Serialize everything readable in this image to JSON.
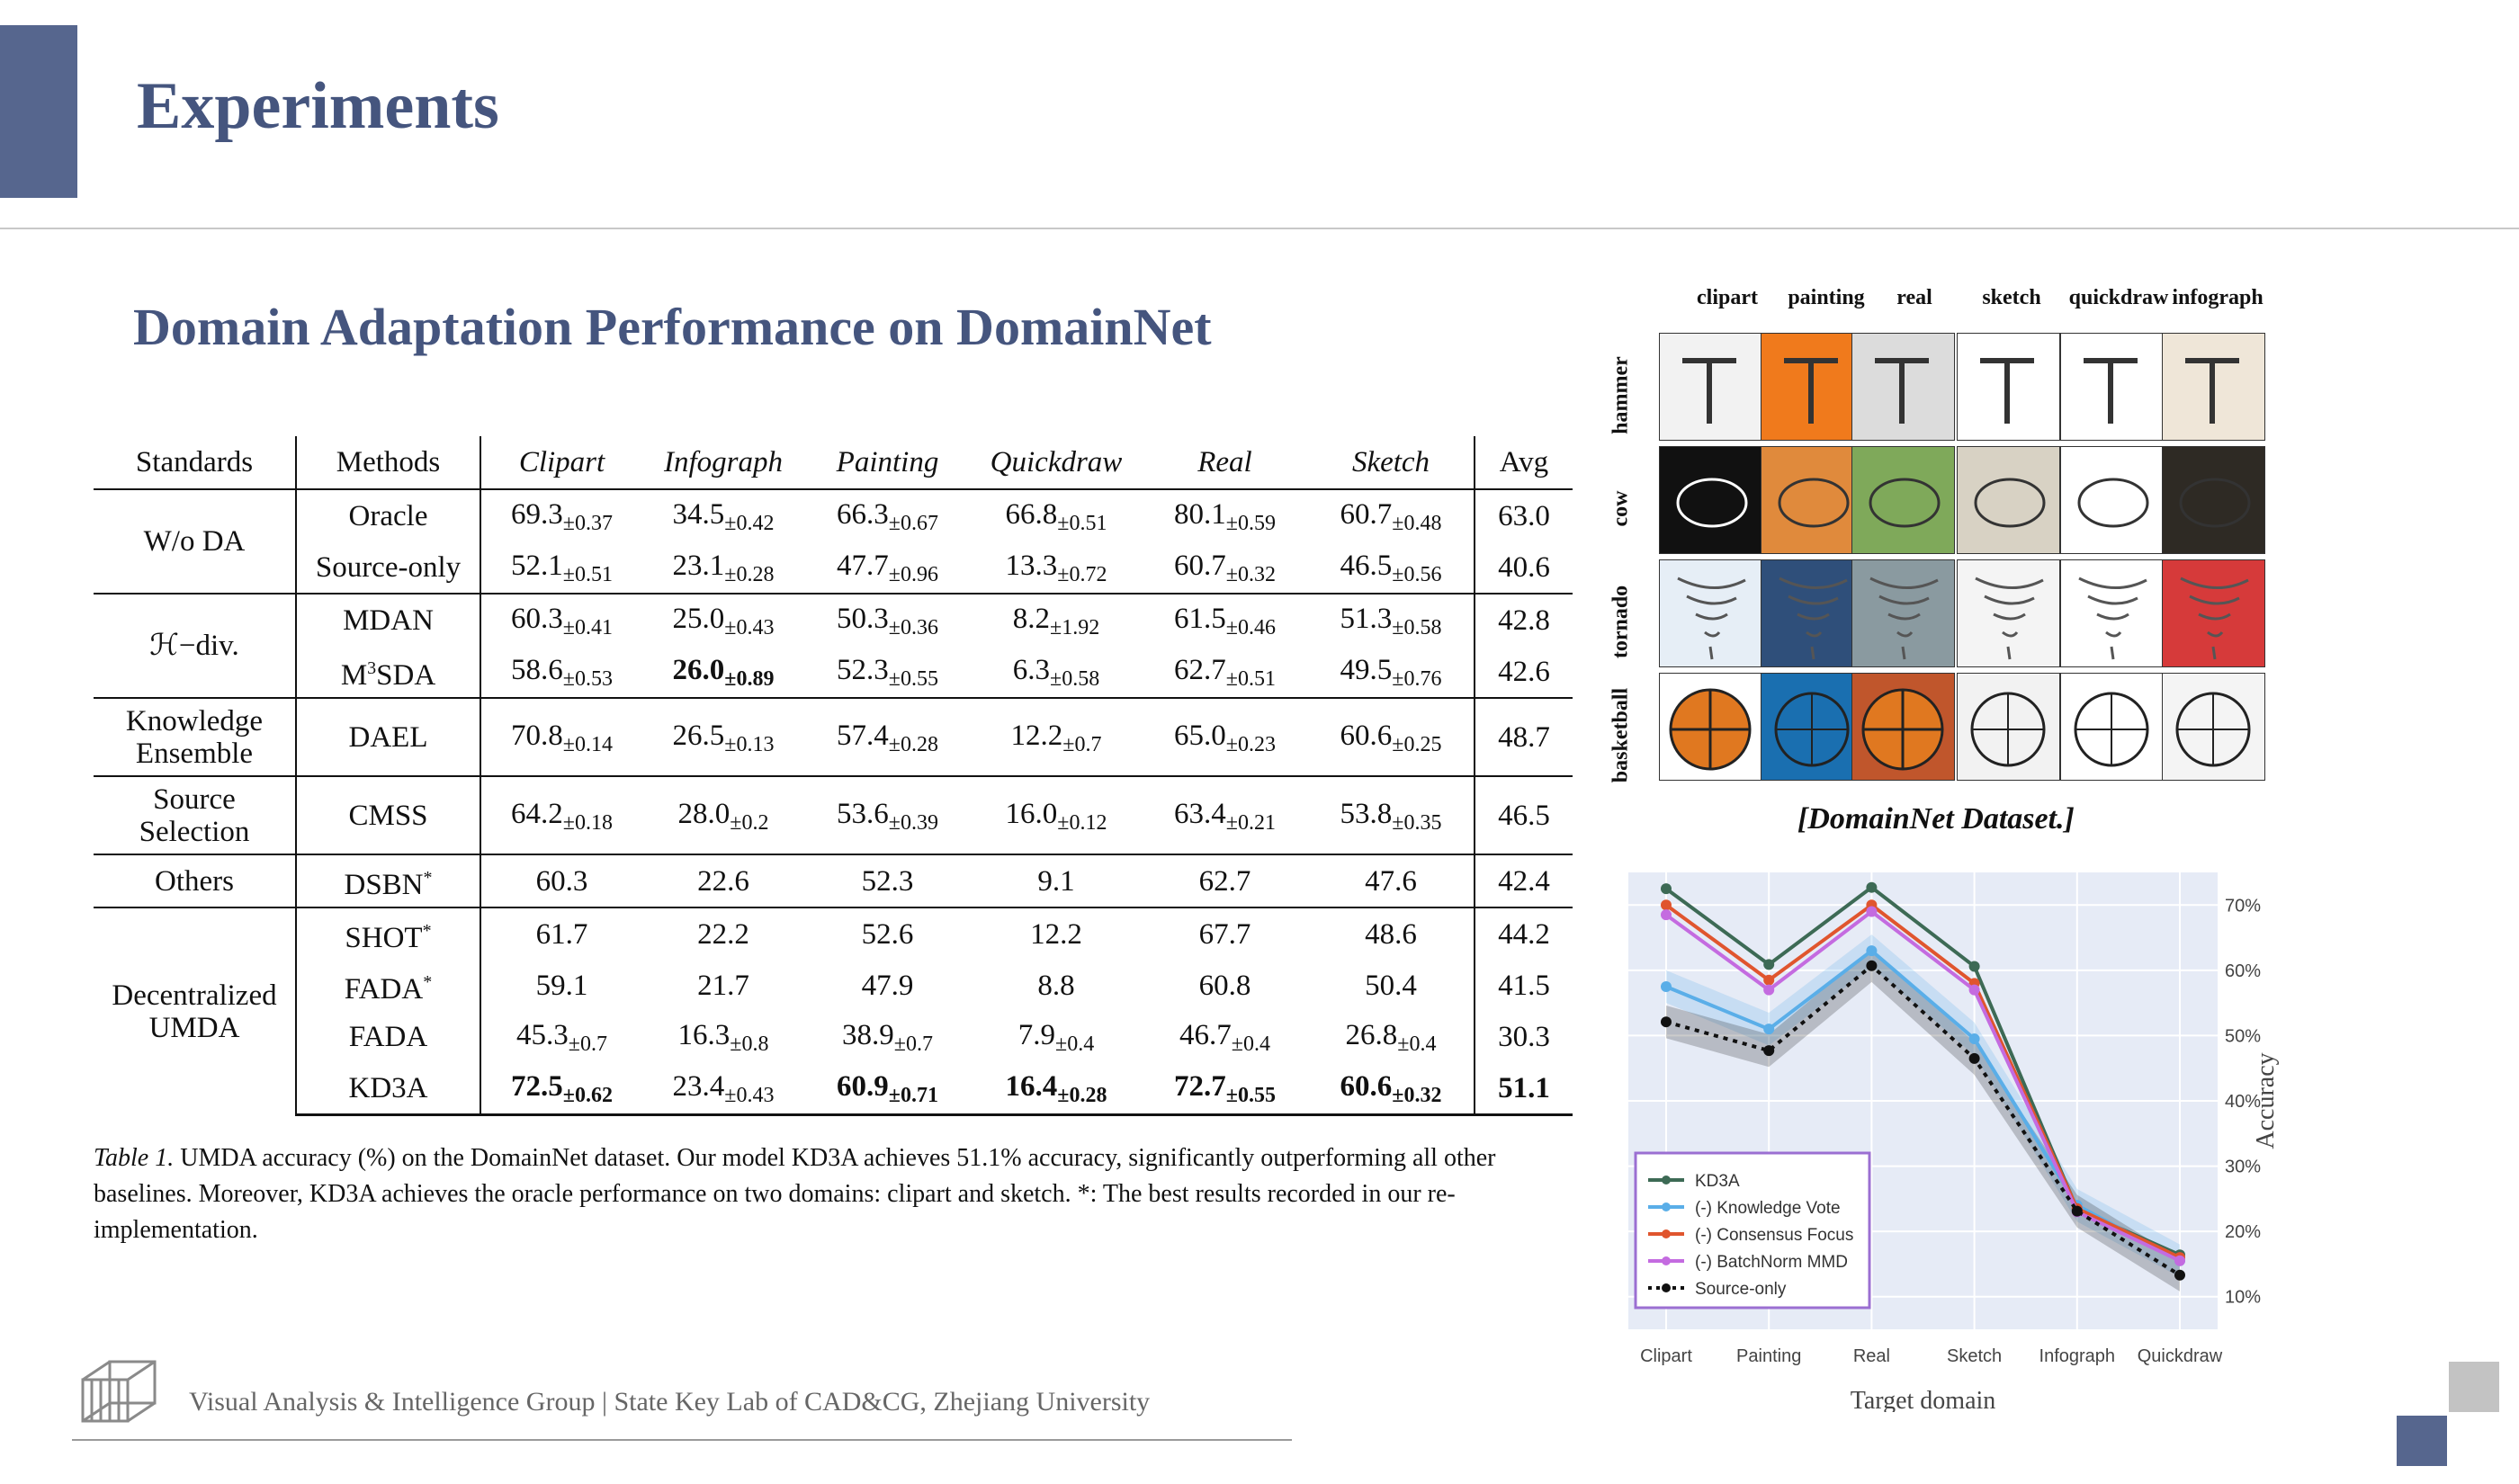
{
  "slide": {
    "title": "Experiments",
    "section_title": "Domain Adaptation Performance on DomainNet",
    "footer": "Visual Analysis & Intelligence Group | State Key Lab of CAD&CG, Zhejiang University"
  },
  "table": {
    "headers": [
      "Standards",
      "Methods",
      "Clipart",
      "Infograph",
      "Painting",
      "Quickdraw",
      "Real",
      "Sketch",
      "Avg"
    ],
    "groups": {
      "wo_da": "W/o DA",
      "h_div": "ℋ−div.",
      "ke_line1": "Knowledge",
      "ke_line2": "Ensemble",
      "ss_line1": "Source",
      "ss_line2": "Selection",
      "others": "Others",
      "dumda_line1": "Decentralized",
      "dumda_line2": "UMDA"
    },
    "methods": {
      "oracle": "Oracle",
      "source_only": "Source-only",
      "mdan": "MDAN",
      "m3sda_a": "M",
      "m3sda_sup": "3",
      "m3sda_b": "SDA",
      "dael": "DAEL",
      "cmss": "CMSS",
      "dsbn": "DSBN",
      "shot": "SHOT",
      "fada_star": "FADA",
      "fada": "FADA",
      "kd3a": "KD3A",
      "star": "*"
    },
    "rows": {
      "oracle": [
        [
          "69.3",
          "±0.37"
        ],
        [
          "34.5",
          "±0.42"
        ],
        [
          "66.3",
          "±0.67"
        ],
        [
          "66.8",
          "±0.51"
        ],
        [
          "80.1",
          "±0.59"
        ],
        [
          "60.7",
          "±0.48"
        ],
        [
          "63.0",
          ""
        ]
      ],
      "source_only": [
        [
          "52.1",
          "±0.51"
        ],
        [
          "23.1",
          "±0.28"
        ],
        [
          "47.7",
          "±0.96"
        ],
        [
          "13.3",
          "±0.72"
        ],
        [
          "60.7",
          "±0.32"
        ],
        [
          "46.5",
          "±0.56"
        ],
        [
          "40.6",
          ""
        ]
      ],
      "mdan": [
        [
          "60.3",
          "±0.41"
        ],
        [
          "25.0",
          "±0.43"
        ],
        [
          "50.3",
          "±0.36"
        ],
        [
          "8.2",
          "±1.92"
        ],
        [
          "61.5",
          "±0.46"
        ],
        [
          "51.3",
          "±0.58"
        ],
        [
          "42.8",
          ""
        ]
      ],
      "m3sda": [
        [
          "58.6",
          "±0.53"
        ],
        [
          "26.0",
          "±0.89"
        ],
        [
          "52.3",
          "±0.55"
        ],
        [
          "6.3",
          "±0.58"
        ],
        [
          "62.7",
          "±0.51"
        ],
        [
          "49.5",
          "±0.76"
        ],
        [
          "42.6",
          ""
        ]
      ],
      "dael": [
        [
          "70.8",
          "±0.14"
        ],
        [
          "26.5",
          "±0.13"
        ],
        [
          "57.4",
          "±0.28"
        ],
        [
          "12.2",
          "±0.7"
        ],
        [
          "65.0",
          "±0.23"
        ],
        [
          "60.6",
          "±0.25"
        ],
        [
          "48.7",
          ""
        ]
      ],
      "cmss": [
        [
          "64.2",
          "±0.18"
        ],
        [
          "28.0",
          "±0.2"
        ],
        [
          "53.6",
          "±0.39"
        ],
        [
          "16.0",
          "±0.12"
        ],
        [
          "63.4",
          "±0.21"
        ],
        [
          "53.8",
          "±0.35"
        ],
        [
          "46.5",
          ""
        ]
      ],
      "dsbn": [
        [
          "60.3",
          ""
        ],
        [
          "22.6",
          ""
        ],
        [
          "52.3",
          ""
        ],
        [
          "9.1",
          ""
        ],
        [
          "62.7",
          ""
        ],
        [
          "47.6",
          ""
        ],
        [
          "42.4",
          ""
        ]
      ],
      "shot": [
        [
          "61.7",
          ""
        ],
        [
          "22.2",
          ""
        ],
        [
          "52.6",
          ""
        ],
        [
          "12.2",
          ""
        ],
        [
          "67.7",
          ""
        ],
        [
          "48.6",
          ""
        ],
        [
          "44.2",
          ""
        ]
      ],
      "fada_star": [
        [
          "59.1",
          ""
        ],
        [
          "21.7",
          ""
        ],
        [
          "47.9",
          ""
        ],
        [
          "8.8",
          ""
        ],
        [
          "60.8",
          ""
        ],
        [
          "50.4",
          ""
        ],
        [
          "41.5",
          ""
        ]
      ],
      "fada": [
        [
          "45.3",
          "±0.7"
        ],
        [
          "16.3",
          "±0.8"
        ],
        [
          "38.9",
          "±0.7"
        ],
        [
          "7.9",
          "±0.4"
        ],
        [
          "46.7",
          "±0.4"
        ],
        [
          "26.8",
          "±0.4"
        ],
        [
          "30.3",
          ""
        ]
      ],
      "kd3a": [
        [
          "72.5",
          "±0.62"
        ],
        [
          "23.4",
          "±0.43"
        ],
        [
          "60.9",
          "±0.71"
        ],
        [
          "16.4",
          "±0.28"
        ],
        [
          "72.7",
          "±0.55"
        ],
        [
          "60.6",
          "±0.32"
        ],
        [
          "51.1",
          ""
        ]
      ]
    },
    "caption_label": "Table 1.",
    "caption_text": " UMDA accuracy (%) on the DomainNet dataset. Our model KD3A achieves 51.1% accuracy, significantly outperforming all other baselines. Moreover, KD3A achieves the oracle performance on two domains: clipart and sketch. *: The best results recorded in our re-implementation."
  },
  "dataset_figure": {
    "columns": [
      "clipart",
      "painting",
      "real",
      "sketch",
      "quickdraw",
      "infograph"
    ],
    "rows": [
      "hammer",
      "cow",
      "tornado",
      "basketball"
    ],
    "caption": "[DomainNet Dataset.]"
  },
  "chart_data": {
    "type": "line",
    "categories": [
      "Clipart",
      "Painting",
      "Real",
      "Sketch",
      "Infograph",
      "Quickdraw"
    ],
    "xlabel": "Target domain",
    "ylabel": "Accuracy",
    "y_ticks": [
      "10%",
      "20%",
      "30%",
      "40%",
      "50%",
      "60%",
      "70%"
    ],
    "ylim": [
      5,
      75
    ],
    "y_axis_side": "right",
    "legend_position": "bottom-left",
    "grid": true,
    "series": [
      {
        "name": "KD3A",
        "color": "#3d6a55",
        "style": "solid",
        "values": [
          72.5,
          60.9,
          72.7,
          60.6,
          23.4,
          16.4
        ]
      },
      {
        "name": "(-) Knowledge Vote",
        "color": "#5aaee8",
        "style": "solid",
        "values": [
          57.5,
          51.0,
          63.0,
          49.5,
          24.0,
          15.5
        ],
        "band": 2.5
      },
      {
        "name": "(-) Consensus Focus",
        "color": "#e0552e",
        "style": "solid",
        "values": [
          70.0,
          58.5,
          70.0,
          58.0,
          23.5,
          16.0
        ]
      },
      {
        "name": "(-) BatchNorm MMD",
        "color": "#c46be0",
        "style": "solid",
        "values": [
          68.5,
          57.0,
          69.0,
          57.0,
          23.0,
          15.5
        ]
      },
      {
        "name": "Source-only",
        "color": "#111111",
        "style": "dotted",
        "values": [
          52.1,
          47.7,
          60.7,
          46.5,
          23.1,
          13.3
        ],
        "band": 2.5
      }
    ]
  }
}
